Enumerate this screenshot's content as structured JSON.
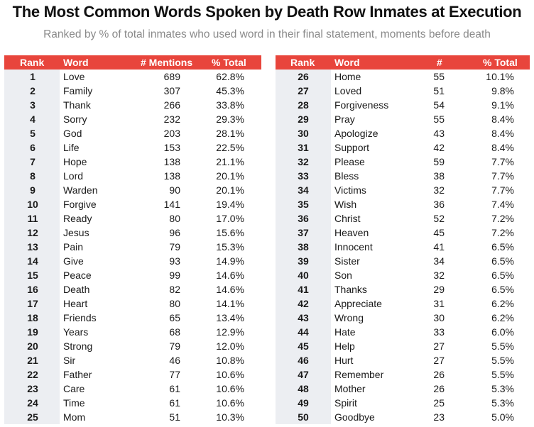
{
  "title": "The Most Common Words Spoken by Death Row Inmates at Execution",
  "subtitle": "Ranked by % of total inmates who used word in their final statement, moments before death",
  "colors": {
    "header": "#e8453c",
    "rank_column": "#eceef2"
  },
  "left_table": {
    "headers": [
      "Rank",
      "Word",
      "# Mentions",
      "% Total"
    ],
    "rows": [
      [
        "1",
        "Love",
        "689",
        "62.8%"
      ],
      [
        "2",
        "Family",
        "307",
        "45.3%"
      ],
      [
        "3",
        "Thank",
        "266",
        "33.8%"
      ],
      [
        "4",
        "Sorry",
        "232",
        "29.3%"
      ],
      [
        "5",
        "God",
        "203",
        "28.1%"
      ],
      [
        "6",
        "Life",
        "153",
        "22.5%"
      ],
      [
        "7",
        "Hope",
        "138",
        "21.1%"
      ],
      [
        "8",
        "Lord",
        "138",
        "20.1%"
      ],
      [
        "9",
        "Warden",
        "90",
        "20.1%"
      ],
      [
        "10",
        "Forgive",
        "141",
        "19.4%"
      ],
      [
        "11",
        "Ready",
        "80",
        "17.0%"
      ],
      [
        "12",
        "Jesus",
        "96",
        "15.6%"
      ],
      [
        "13",
        "Pain",
        "79",
        "15.3%"
      ],
      [
        "14",
        "Give",
        "93",
        "14.9%"
      ],
      [
        "15",
        "Peace",
        "99",
        "14.6%"
      ],
      [
        "16",
        "Death",
        "82",
        "14.6%"
      ],
      [
        "17",
        "Heart",
        "80",
        "14.1%"
      ],
      [
        "18",
        "Friends",
        "65",
        "13.4%"
      ],
      [
        "19",
        "Years",
        "68",
        "12.9%"
      ],
      [
        "20",
        "Strong",
        "79",
        "12.0%"
      ],
      [
        "21",
        "Sir",
        "46",
        "10.8%"
      ],
      [
        "22",
        "Father",
        "77",
        "10.6%"
      ],
      [
        "23",
        "Care",
        "61",
        "10.6%"
      ],
      [
        "24",
        "Time",
        "61",
        "10.6%"
      ],
      [
        "25",
        "Mom",
        "51",
        "10.3%"
      ]
    ]
  },
  "right_table": {
    "headers": [
      "Rank",
      "Word",
      "#",
      "% Total"
    ],
    "rows": [
      [
        "26",
        "Home",
        "55",
        "10.1%"
      ],
      [
        "27",
        "Loved",
        "51",
        "9.8%"
      ],
      [
        "28",
        "Forgiveness",
        "54",
        "9.1%"
      ],
      [
        "29",
        "Pray",
        "55",
        "8.4%"
      ],
      [
        "30",
        "Apologize",
        "43",
        "8.4%"
      ],
      [
        "31",
        "Support",
        "42",
        "8.4%"
      ],
      [
        "32",
        "Please",
        "59",
        "7.7%"
      ],
      [
        "33",
        "Bless",
        "38",
        "7.7%"
      ],
      [
        "34",
        "Victims",
        "32",
        "7.7%"
      ],
      [
        "35",
        "Wish",
        "36",
        "7.4%"
      ],
      [
        "36",
        "Christ",
        "52",
        "7.2%"
      ],
      [
        "37",
        "Heaven",
        "45",
        "7.2%"
      ],
      [
        "38",
        "Innocent",
        "41",
        "6.5%"
      ],
      [
        "39",
        "Sister",
        "34",
        "6.5%"
      ],
      [
        "40",
        "Son",
        "32",
        "6.5%"
      ],
      [
        "41",
        "Thanks",
        "29",
        "6.5%"
      ],
      [
        "42",
        "Appreciate",
        "31",
        "6.2%"
      ],
      [
        "43",
        "Wrong",
        "30",
        "6.2%"
      ],
      [
        "44",
        "Hate",
        "33",
        "6.0%"
      ],
      [
        "45",
        "Help",
        "27",
        "5.5%"
      ],
      [
        "46",
        "Hurt",
        "27",
        "5.5%"
      ],
      [
        "47",
        "Remember",
        "26",
        "5.5%"
      ],
      [
        "48",
        "Mother",
        "26",
        "5.3%"
      ],
      [
        "49",
        "Spirit",
        "25",
        "5.3%"
      ],
      [
        "50",
        "Goodbye",
        "23",
        "5.0%"
      ]
    ]
  },
  "chart_data": {
    "type": "table",
    "title": "The Most Common Words Spoken by Death Row Inmates at Execution",
    "subtitle": "Ranked by % of total inmates who used word in their final statement, moments before death",
    "columns": [
      "Rank",
      "Word",
      "# Mentions",
      "% Total"
    ],
    "rank": [
      1,
      2,
      3,
      4,
      5,
      6,
      7,
      8,
      9,
      10,
      11,
      12,
      13,
      14,
      15,
      16,
      17,
      18,
      19,
      20,
      21,
      22,
      23,
      24,
      25,
      26,
      27,
      28,
      29,
      30,
      31,
      32,
      33,
      34,
      35,
      36,
      37,
      38,
      39,
      40,
      41,
      42,
      43,
      44,
      45,
      46,
      47,
      48,
      49,
      50
    ],
    "words": [
      "Love",
      "Family",
      "Thank",
      "Sorry",
      "God",
      "Life",
      "Hope",
      "Lord",
      "Warden",
      "Forgive",
      "Ready",
      "Jesus",
      "Pain",
      "Give",
      "Peace",
      "Death",
      "Heart",
      "Friends",
      "Years",
      "Strong",
      "Sir",
      "Father",
      "Care",
      "Time",
      "Mom",
      "Home",
      "Loved",
      "Forgiveness",
      "Pray",
      "Apologize",
      "Support",
      "Please",
      "Bless",
      "Victims",
      "Wish",
      "Christ",
      "Heaven",
      "Innocent",
      "Sister",
      "Son",
      "Thanks",
      "Appreciate",
      "Wrong",
      "Hate",
      "Help",
      "Hurt",
      "Remember",
      "Mother",
      "Spirit",
      "Goodbye"
    ],
    "mentions": [
      689,
      307,
      266,
      232,
      203,
      153,
      138,
      138,
      90,
      141,
      80,
      96,
      79,
      93,
      99,
      82,
      80,
      65,
      68,
      79,
      46,
      77,
      61,
      61,
      51,
      55,
      51,
      54,
      55,
      43,
      42,
      59,
      38,
      32,
      36,
      52,
      45,
      41,
      34,
      32,
      29,
      31,
      30,
      33,
      27,
      27,
      26,
      26,
      25,
      23
    ],
    "percent_total": [
      62.8,
      45.3,
      33.8,
      29.3,
      28.1,
      22.5,
      21.1,
      20.1,
      20.1,
      19.4,
      17.0,
      15.6,
      15.3,
      14.9,
      14.6,
      14.6,
      14.1,
      13.4,
      12.9,
      12.0,
      10.8,
      10.6,
      10.6,
      10.6,
      10.3,
      10.1,
      9.8,
      9.1,
      8.4,
      8.4,
      8.4,
      7.7,
      7.7,
      7.7,
      7.4,
      7.2,
      7.2,
      6.5,
      6.5,
      6.5,
      6.5,
      6.2,
      6.2,
      6.0,
      5.5,
      5.5,
      5.5,
      5.3,
      5.3,
      5.0
    ]
  }
}
